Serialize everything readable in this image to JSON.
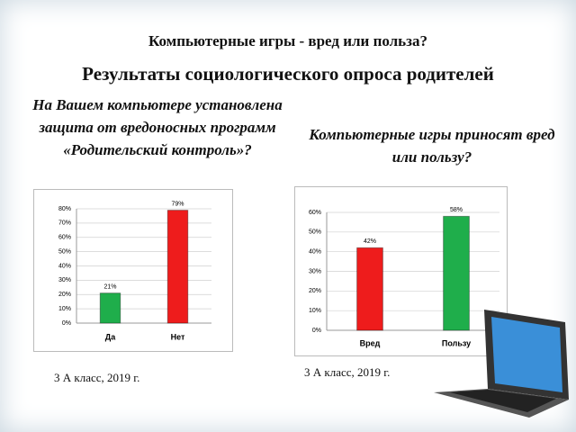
{
  "title": "Компьютерные игры -  вред или польза?",
  "subtitle": "Результаты социологического опроса родителей",
  "chart_data": [
    {
      "type": "bar",
      "title": "На Вашем компьютере установлена защита от вредоносных программ «Родительский контроль»?",
      "categories": [
        "Да",
        "Нет"
      ],
      "values": [
        21,
        79
      ],
      "value_labels": [
        "21%",
        "79%"
      ],
      "colors": [
        "#1fae4b",
        "#ee1c1c"
      ],
      "ylim": [
        0,
        80
      ],
      "yticks": [
        {
          "value": 0,
          "label": "0%"
        },
        {
          "value": 10,
          "label": "10%"
        },
        {
          "value": 20,
          "label": "20%"
        },
        {
          "value": 30,
          "label": "30%"
        },
        {
          "value": 40,
          "label": "40%"
        },
        {
          "value": 50,
          "label": "50%"
        },
        {
          "value": 60,
          "label": "60%"
        },
        {
          "value": 70,
          "label": "70%"
        },
        {
          "value": 80,
          "label": "80%"
        }
      ],
      "grid": true,
      "caption": "3 А класс, 2019 г."
    },
    {
      "type": "bar",
      "title": "Компьютерные  игры приносят вред или пользу?",
      "categories": [
        "Вред",
        "Пользу"
      ],
      "values": [
        42,
        58
      ],
      "value_labels": [
        "42%",
        "58%"
      ],
      "colors": [
        "#ee1c1c",
        "#1fae4b"
      ],
      "ylim": [
        0,
        60
      ],
      "yticks": [
        {
          "value": 0,
          "label": "0%"
        },
        {
          "value": 10,
          "label": "10%"
        },
        {
          "value": 20,
          "label": "20%"
        },
        {
          "value": 30,
          "label": "30%"
        },
        {
          "value": 40,
          "label": "40%"
        },
        {
          "value": 50,
          "label": "50%"
        },
        {
          "value": 60,
          "label": "60%"
        }
      ],
      "grid": true,
      "caption": "3 А класс, 2019 г."
    }
  ]
}
